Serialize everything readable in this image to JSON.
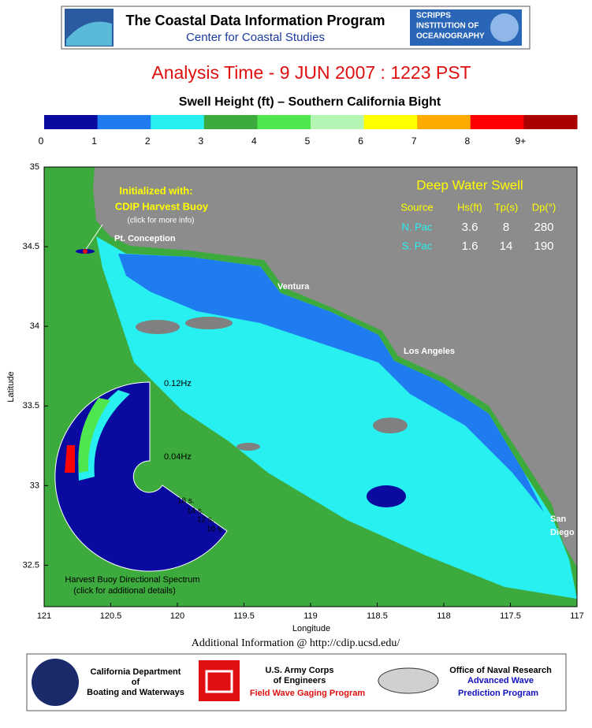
{
  "header": {
    "title": "The Coastal Data Information Program",
    "subtitle": "Center for Coastal Studies",
    "logo_right": [
      "SCRIPPS",
      "INSTITUTION OF",
      "OCEANOGRAPHY"
    ]
  },
  "analysis_time": "Analysis Time -  9 JUN 2007 : 1223 PST",
  "map_title": "Swell Height (ft) – Southern California Bight",
  "colorbar": {
    "colors": [
      "#0a0aa0",
      "#1e7bf0",
      "#28f0f0",
      "#3caa3c",
      "#50e650",
      "#b4f5b4",
      "#ffff00",
      "#ffaa00",
      "#ff0000",
      "#aa0000"
    ],
    "labels": [
      "0",
      "1",
      "2",
      "3",
      "4",
      "5",
      "6",
      "7",
      "8",
      "9+"
    ]
  },
  "axes": {
    "xlabel": "Longitude",
    "ylabel": "Latitude",
    "xlim": [
      121,
      117
    ],
    "ylim": [
      32.24,
      35
    ],
    "xticks": [
      121,
      120.5,
      120,
      119.5,
      119,
      118.5,
      118,
      117.5,
      117
    ],
    "yticks": [
      35,
      34.5,
      34,
      33.5,
      33,
      32.5
    ]
  },
  "annotations": {
    "init": "Initialized with:",
    "buoy": "CDIP Harvest Buoy",
    "buoy_hint": "(click for more info)",
    "pt_conception": "Pt. Conception",
    "ventura": "Ventura",
    "los_angeles": "Los Angeles",
    "san_diego": [
      "San",
      "Diego"
    ]
  },
  "swell_table": {
    "title": "Deep Water Swell",
    "columns": [
      "Source",
      "Hs(ft)",
      "Tp(s)",
      "Dp(°)"
    ],
    "rows": [
      [
        "N. Pac",
        "3.6",
        "8",
        "280"
      ],
      [
        "S. Pac",
        "1.6",
        "14",
        "190"
      ]
    ]
  },
  "spectrum": {
    "outer": "0.12Hz",
    "inner": "0.04Hz",
    "periods": [
      "18 s.",
      "14 s.",
      "12 s.",
      "10 s."
    ],
    "caption": "Harvest Buoy Directional Spectrum",
    "hint": "(click for additional details)"
  },
  "link": "Additional Information @ http://cdip.ucsd.edu/",
  "footer": {
    "dbw": [
      "California Department",
      "of",
      "Boating and Waterways"
    ],
    "usace": [
      "U.S. Army Corps",
      "of Engineers",
      "Field Wave Gaging Program"
    ],
    "onr": [
      "Office of Naval Research",
      "Advanced Wave",
      "Prediction Program"
    ]
  }
}
